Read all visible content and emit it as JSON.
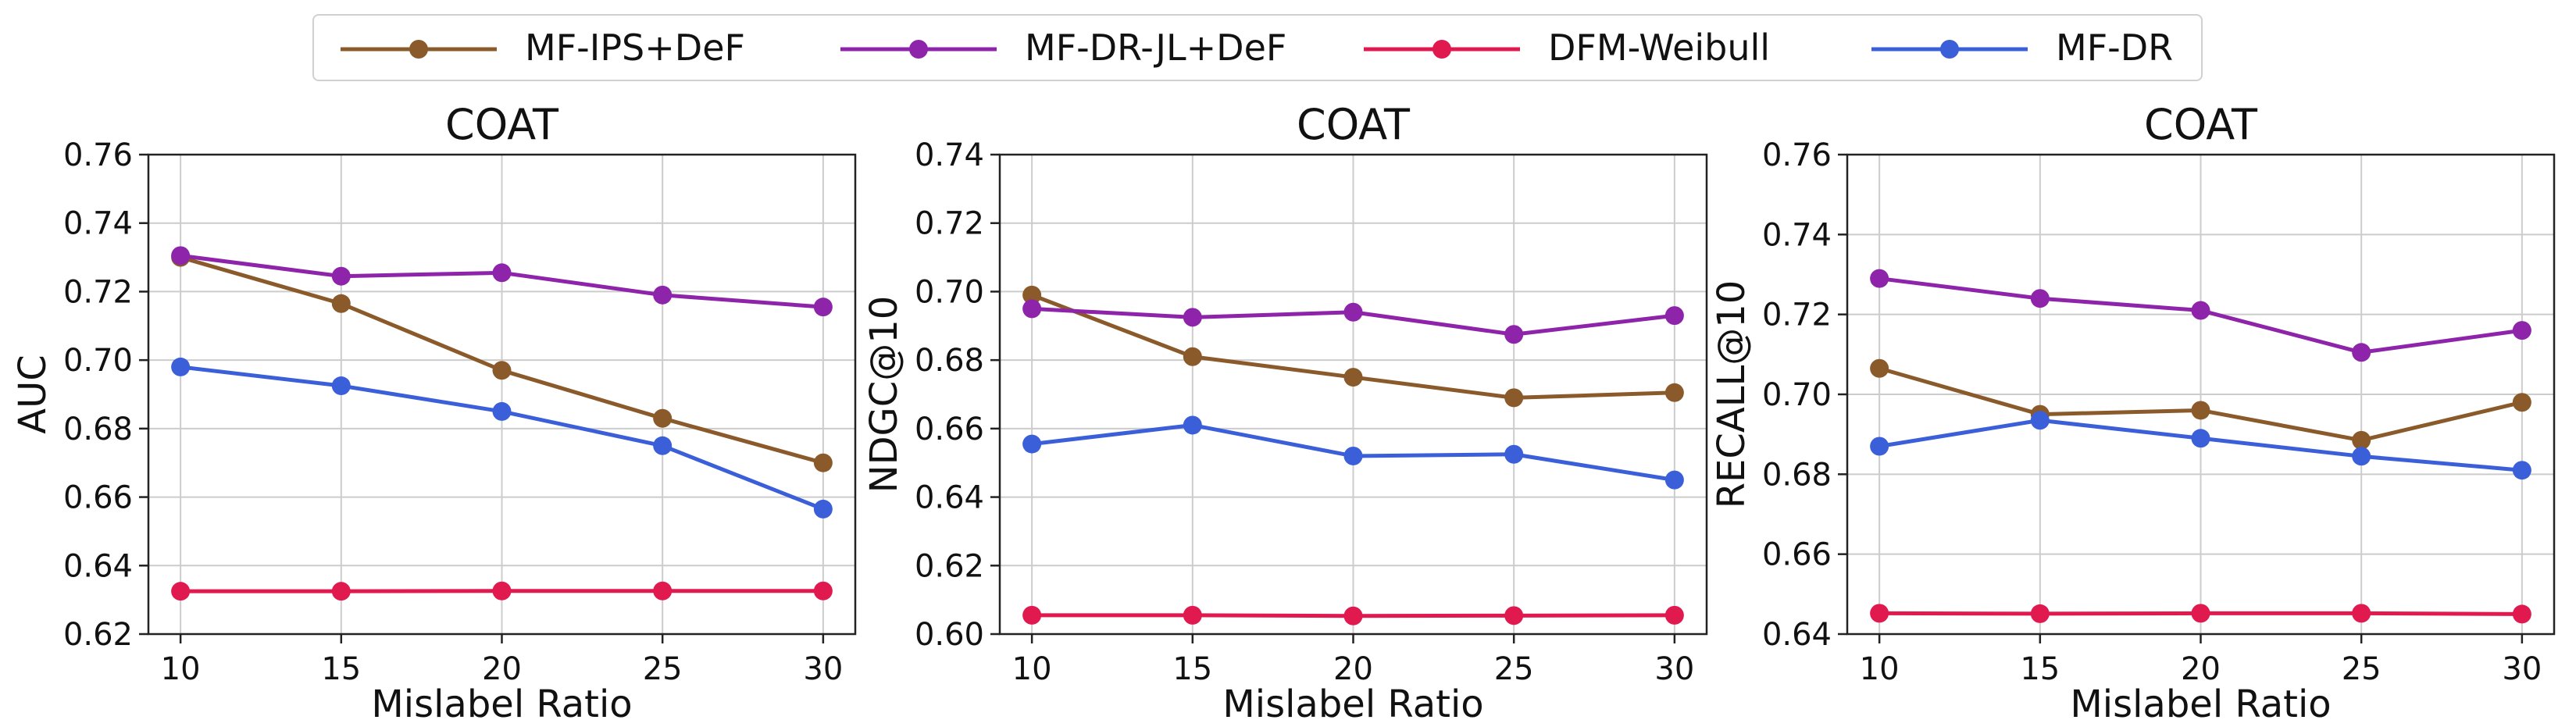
{
  "legend": {
    "items": [
      {
        "label": "MF-IPS+DeF",
        "color": "#8B5A2B"
      },
      {
        "label": "MF-DR-JL+DeF",
        "color": "#8E24AA"
      },
      {
        "label": "DFM-Weibull",
        "color": "#E0194F"
      },
      {
        "label": "MF-DR",
        "color": "#3A5FD9"
      }
    ]
  },
  "chart_data": [
    {
      "type": "line",
      "title": "COAT",
      "xlabel": "Mislabel Ratio",
      "ylabel": "AUC",
      "x": [
        10,
        15,
        20,
        25,
        30
      ],
      "xlim": [
        9,
        31
      ],
      "ylim": [
        0.62,
        0.76
      ],
      "yticks": [
        "0.62",
        "0.64",
        "0.66",
        "0.68",
        "0.70",
        "0.72",
        "0.74",
        "0.76"
      ],
      "grid": true,
      "series": [
        {
          "name": "MF-IPS+DeF",
          "color": "#8B5A2B",
          "values": [
            0.73,
            0.7165,
            0.697,
            0.683,
            0.67
          ]
        },
        {
          "name": "MF-DR-JL+DeF",
          "color": "#8E24AA",
          "values": [
            0.7305,
            0.7245,
            0.7255,
            0.719,
            0.7155
          ]
        },
        {
          "name": "DFM-Weibull",
          "color": "#E0194F",
          "values": [
            0.6325,
            0.6325,
            0.6326,
            0.6326,
            0.6326
          ]
        },
        {
          "name": "MF-DR",
          "color": "#3A5FD9",
          "values": [
            0.698,
            0.6925,
            0.685,
            0.675,
            0.6565
          ]
        }
      ]
    },
    {
      "type": "line",
      "title": "COAT",
      "xlabel": "Mislabel Ratio",
      "ylabel": "NDGC@10",
      "x": [
        10,
        15,
        20,
        25,
        30
      ],
      "xlim": [
        9,
        31
      ],
      "ylim": [
        0.6,
        0.74
      ],
      "yticks": [
        "0.60",
        "0.62",
        "0.64",
        "0.66",
        "0.68",
        "0.70",
        "0.72",
        "0.74"
      ],
      "grid": true,
      "series": [
        {
          "name": "MF-IPS+DeF",
          "color": "#8B5A2B",
          "values": [
            0.699,
            0.681,
            0.675,
            0.669,
            0.6705
          ]
        },
        {
          "name": "MF-DR-JL+DeF",
          "color": "#8E24AA",
          "values": [
            0.695,
            0.6925,
            0.694,
            0.6875,
            0.693
          ]
        },
        {
          "name": "DFM-Weibull",
          "color": "#E0194F",
          "values": [
            0.6055,
            0.6055,
            0.6053,
            0.6054,
            0.6055
          ]
        },
        {
          "name": "MF-DR",
          "color": "#3A5FD9",
          "values": [
            0.6555,
            0.661,
            0.652,
            0.6525,
            0.645
          ]
        }
      ]
    },
    {
      "type": "line",
      "title": "COAT",
      "xlabel": "Mislabel Ratio",
      "ylabel": "RECALL@10",
      "x": [
        10,
        15,
        20,
        25,
        30
      ],
      "xlim": [
        9,
        31
      ],
      "ylim": [
        0.64,
        0.76
      ],
      "yticks": [
        "0.64",
        "0.66",
        "0.68",
        "0.70",
        "0.72",
        "0.74",
        "0.76"
      ],
      "grid": true,
      "series": [
        {
          "name": "MF-IPS+DeF",
          "color": "#8B5A2B",
          "values": [
            0.7065,
            0.695,
            0.696,
            0.6885,
            0.698
          ]
        },
        {
          "name": "MF-DR-JL+DeF",
          "color": "#8E24AA",
          "values": [
            0.729,
            0.724,
            0.721,
            0.7105,
            0.716
          ]
        },
        {
          "name": "DFM-Weibull",
          "color": "#E0194F",
          "values": [
            0.6452,
            0.6451,
            0.6452,
            0.6452,
            0.645
          ]
        },
        {
          "name": "MF-DR",
          "color": "#3A5FD9",
          "values": [
            0.687,
            0.6935,
            0.689,
            0.6845,
            0.681
          ]
        }
      ]
    }
  ]
}
